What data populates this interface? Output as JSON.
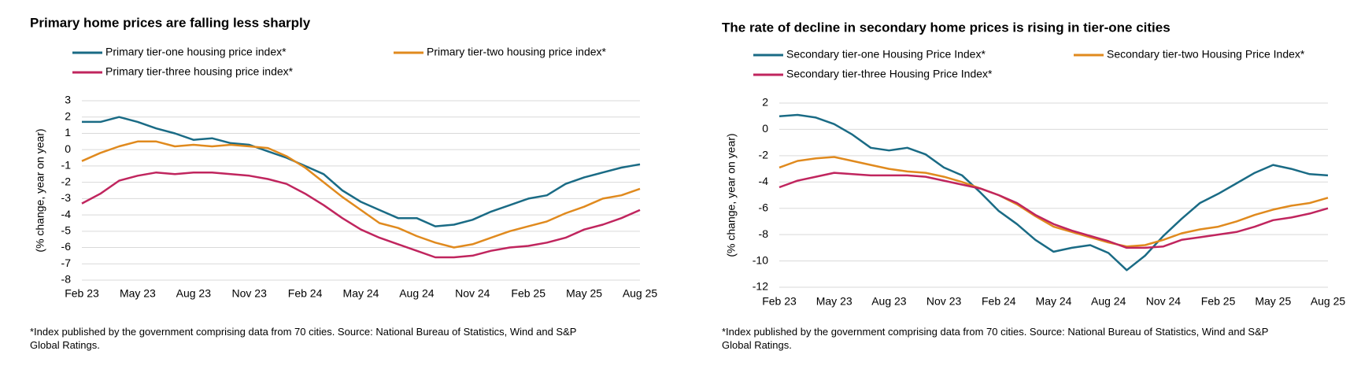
{
  "chart_data": [
    {
      "type": "line",
      "title": "Primary home prices are falling less sharply",
      "y_label": "(% change, year on year)",
      "footnote": "*Index published by the government comprising data from 70 cities. Source: National Bureau of Statistics, Wind and S&P Global Ratings.",
      "categories": [
        "Feb 23",
        null,
        null,
        "May 23",
        null,
        null,
        "Aug 23",
        null,
        null,
        "Nov 23",
        null,
        null,
        "Feb 24",
        null,
        null,
        "May 24",
        null,
        null,
        "Aug 24",
        null,
        null,
        "Nov 24",
        null,
        null,
        "Feb 25",
        null,
        null,
        "May 25",
        null,
        null,
        "Aug 25"
      ],
      "ylim": [
        -8,
        3
      ],
      "yticks": [
        -8,
        -7,
        -6,
        -5,
        -4,
        -3,
        -2,
        -1,
        0,
        1,
        2,
        3
      ],
      "grid": true,
      "series": [
        {
          "name": "Primary tier-one housing price index*",
          "color": "#1a6b85",
          "values": [
            1.7,
            1.7,
            2.0,
            1.7,
            1.3,
            1.0,
            0.6,
            0.7,
            0.4,
            0.3,
            -0.1,
            -0.5,
            -1.0,
            -1.5,
            -2.5,
            -3.2,
            -3.7,
            -4.2,
            -4.2,
            -4.7,
            -4.6,
            -4.3,
            -3.8,
            -3.4,
            -3.0,
            -2.8,
            -2.1,
            -1.7,
            -1.4,
            -1.1,
            -0.9
          ]
        },
        {
          "name": "Primary tier-two housing price index*",
          "color": "#e08a1e",
          "values": [
            -0.7,
            -0.2,
            0.2,
            0.5,
            0.5,
            0.2,
            0.3,
            0.2,
            0.3,
            0.2,
            0.1,
            -0.4,
            -1.1,
            -2.0,
            -2.9,
            -3.7,
            -4.5,
            -4.8,
            -5.3,
            -5.7,
            -6.0,
            -5.8,
            -5.4,
            -5.0,
            -4.7,
            -4.4,
            -3.9,
            -3.5,
            -3.0,
            -2.8,
            -2.4
          ]
        },
        {
          "name": "Primary tier-three housing price index*",
          "color": "#c0255e",
          "values": [
            -3.3,
            -2.7,
            -1.9,
            -1.6,
            -1.4,
            -1.5,
            -1.4,
            -1.4,
            -1.5,
            -1.6,
            -1.8,
            -2.1,
            -2.7,
            -3.4,
            -4.2,
            -4.9,
            -5.4,
            -5.8,
            -6.2,
            -6.6,
            -6.6,
            -6.5,
            -6.2,
            -6.0,
            -5.9,
            -5.7,
            -5.4,
            -4.9,
            -4.6,
            -4.2,
            -3.7
          ]
        }
      ]
    },
    {
      "type": "line",
      "title": "The rate of decline in secondary home prices is rising in tier-one cities",
      "y_label": "(% change, year on year)",
      "footnote": "*Index published by the government comprising data from 70 cities. Source: National Bureau of Statistics, Wind and S&P Global Ratings.",
      "categories": [
        "Feb 23",
        null,
        null,
        "May 23",
        null,
        null,
        "Aug 23",
        null,
        null,
        "Nov 23",
        null,
        null,
        "Feb 24",
        null,
        null,
        "May 24",
        null,
        null,
        "Aug 24",
        null,
        null,
        "Nov 24",
        null,
        null,
        "Feb 25",
        null,
        null,
        "May 25",
        null,
        null,
        "Aug 25"
      ],
      "ylim": [
        -12,
        2
      ],
      "yticks": [
        -12,
        -10,
        -8,
        -6,
        -4,
        -2,
        0,
        2
      ],
      "grid": true,
      "series": [
        {
          "name": "Secondary tier-one Housing Price Index*",
          "color": "#1a6b85",
          "values": [
            1.0,
            1.1,
            0.9,
            0.4,
            -0.4,
            -1.4,
            -1.6,
            -1.4,
            -1.9,
            -2.9,
            -3.5,
            -4.8,
            -6.2,
            -7.2,
            -8.4,
            -9.3,
            -9.0,
            -8.8,
            -9.4,
            -10.7,
            -9.6,
            -8.1,
            -6.8,
            -5.6,
            -4.9,
            -4.1,
            -3.3,
            -2.7,
            -3.0,
            -3.4,
            -3.5
          ]
        },
        {
          "name": "Secondary tier-two Housing Price Index*",
          "color": "#e08a1e",
          "values": [
            -2.9,
            -2.4,
            -2.2,
            -2.1,
            -2.4,
            -2.7,
            -3.0,
            -3.2,
            -3.3,
            -3.6,
            -4.0,
            -4.5,
            -5.0,
            -5.7,
            -6.6,
            -7.4,
            -7.8,
            -8.2,
            -8.6,
            -8.9,
            -8.8,
            -8.4,
            -7.9,
            -7.6,
            -7.4,
            -7.0,
            -6.5,
            -6.1,
            -5.8,
            -5.6,
            -5.2
          ]
        },
        {
          "name": "Secondary tier-three Housing Price Index*",
          "color": "#c0255e",
          "values": [
            -4.4,
            -3.9,
            -3.6,
            -3.3,
            -3.4,
            -3.5,
            -3.5,
            -3.5,
            -3.6,
            -3.9,
            -4.2,
            -4.5,
            -5.0,
            -5.6,
            -6.5,
            -7.2,
            -7.7,
            -8.1,
            -8.5,
            -9.0,
            -9.0,
            -8.9,
            -8.4,
            -8.2,
            -8.0,
            -7.8,
            -7.4,
            -6.9,
            -6.7,
            -6.4,
            -6.0
          ]
        }
      ]
    }
  ]
}
